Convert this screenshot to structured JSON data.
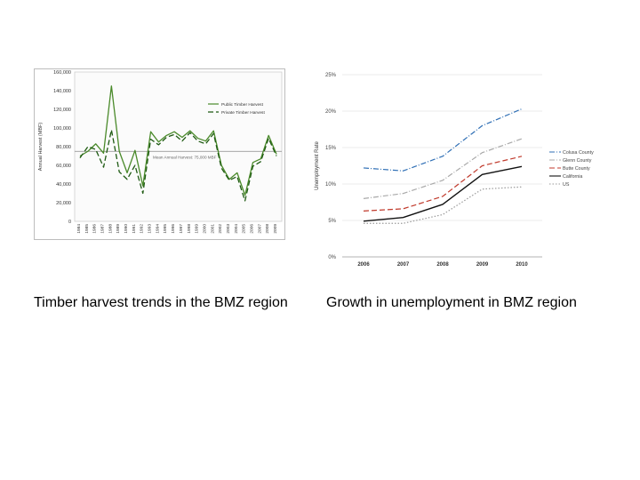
{
  "captions": {
    "left": "Timber harvest trends in the BMZ region",
    "right": "Growth in unemployment in BMZ region"
  },
  "chart_data": [
    {
      "type": "line",
      "title": "",
      "xlabel": "",
      "ylabel": "Annual Harvest (MBF)",
      "ylim": [
        0,
        160000
      ],
      "yticks": [
        0,
        20000,
        40000,
        60000,
        80000,
        100000,
        120000,
        140000,
        160000
      ],
      "ytick_labels": [
        "0",
        "20,000",
        "40,000",
        "60,000",
        "80,000",
        "100,000",
        "120,000",
        "140,000",
        "160,000"
      ],
      "x": [
        1984,
        1985,
        1986,
        1987,
        1988,
        1989,
        1990,
        1991,
        1992,
        1993,
        1994,
        1995,
        1996,
        1997,
        1998,
        1999,
        2000,
        2001,
        2002,
        2003,
        2004,
        2005,
        2006,
        2007,
        2008,
        2009
      ],
      "grid": false,
      "legend_position": "top-right",
      "series": [
        {
          "name": "Public Timber Harvest",
          "color": "#4a8a2a",
          "style": "solid",
          "values": [
            70000,
            75000,
            83000,
            73000,
            145000,
            75000,
            52000,
            76000,
            38000,
            96000,
            85000,
            92000,
            96000,
            90000,
            97000,
            89000,
            86000,
            97000,
            60000,
            45000,
            52000,
            28000,
            63000,
            67000,
            92000,
            72000
          ]
        },
        {
          "name": "Private Timber Harvest",
          "color": "#1e5a12",
          "style": "dashed",
          "values": [
            68000,
            80000,
            77000,
            58000,
            98000,
            53000,
            45000,
            60000,
            30000,
            88000,
            82000,
            90000,
            93000,
            86000,
            95000,
            86000,
            83000,
            94000,
            57000,
            44000,
            48000,
            22000,
            59000,
            64000,
            89000,
            70000
          ]
        }
      ],
      "reference_line": {
        "label": "Mean Annual Harvest: 75,000 MBF",
        "value": 75000,
        "color": "#8a8a8a"
      }
    },
    {
      "type": "line",
      "title": "",
      "xlabel": "",
      "ylabel": "Unemployment Rate",
      "ylim": [
        0,
        25
      ],
      "yticks": [
        0,
        5,
        10,
        15,
        20,
        25
      ],
      "ytick_labels": [
        "0%",
        "5%",
        "10%",
        "15%",
        "20%",
        "25%"
      ],
      "categories": [
        "2006",
        "2007",
        "2008",
        "2009",
        "2010"
      ],
      "grid": true,
      "legend_position": "right",
      "series": [
        {
          "name": "Colusa County",
          "color": "#2f6fb5",
          "style": "dashdot",
          "values": [
            12.2,
            11.8,
            13.8,
            18.0,
            20.3
          ]
        },
        {
          "name": "Glenn County",
          "color": "#a9a9a9",
          "style": "dashdot",
          "values": [
            8.0,
            8.7,
            10.5,
            14.3,
            16.2
          ]
        },
        {
          "name": "Butte County",
          "color": "#c0392b",
          "style": "dashed",
          "values": [
            6.3,
            6.6,
            8.3,
            12.5,
            13.8
          ]
        },
        {
          "name": "California",
          "color": "#111111",
          "style": "solid",
          "values": [
            4.9,
            5.4,
            7.2,
            11.3,
            12.4
          ]
        },
        {
          "name": "US",
          "color": "#9a9a9a",
          "style": "dotted",
          "values": [
            4.6,
            4.6,
            5.8,
            9.3,
            9.6
          ]
        }
      ]
    }
  ]
}
